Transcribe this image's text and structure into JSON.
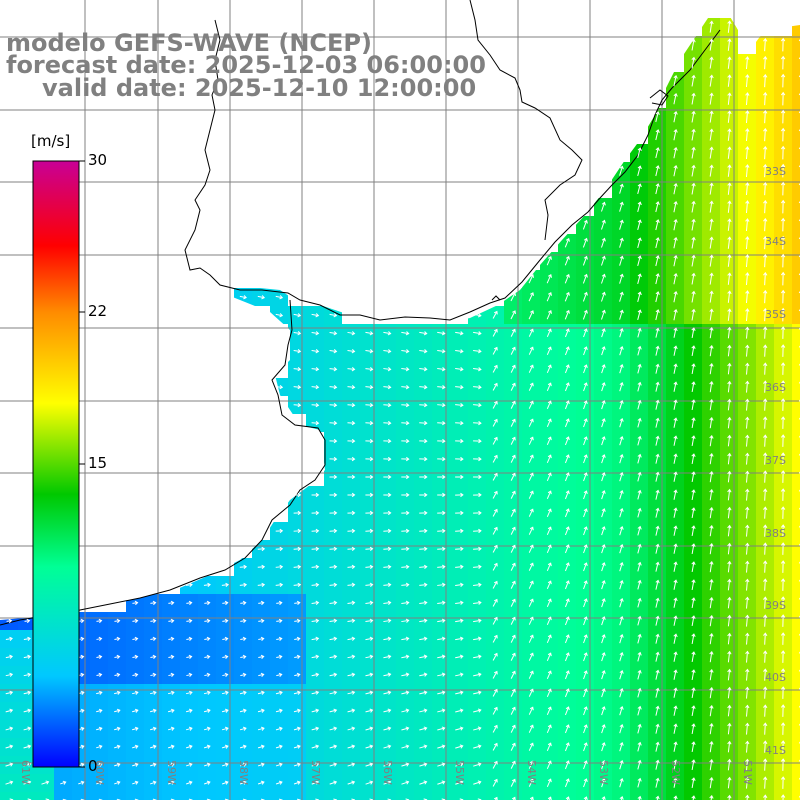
{
  "title": {
    "model": "modelo GEFS-WAVE (NCEP)",
    "forecast": "forecast date: 2025-12-03 06:00:00",
    "valid": "valid date: 2025-12-10 12:00:00"
  },
  "colorbar": {
    "unit": "[m/s]",
    "ticks": [
      "30",
      "22",
      "15",
      "0"
    ],
    "min": 0,
    "max": 30,
    "colors": [
      "#0000ff",
      "#00c8ff",
      "#00ff96",
      "#00c800",
      "#ffff00",
      "#ff8c00",
      "#ff0000",
      "#c80096"
    ]
  },
  "map": {
    "ocean_low_color": "#0000ff",
    "land_color": "#ffffff",
    "grid_color": "#808080",
    "coast_color": "#000000",
    "lat_labels": [
      "33S",
      "34S",
      "35S",
      "36S",
      "37S",
      "38S",
      "39S",
      "40S",
      "41S"
    ],
    "lon_labels": [
      "61W",
      "60W",
      "59W",
      "58W",
      "57W",
      "56W",
      "55W",
      "54W",
      "53W",
      "52W",
      "51W"
    ],
    "field": "wind speed",
    "region": "Rio de la Plata / South Atlantic"
  }
}
